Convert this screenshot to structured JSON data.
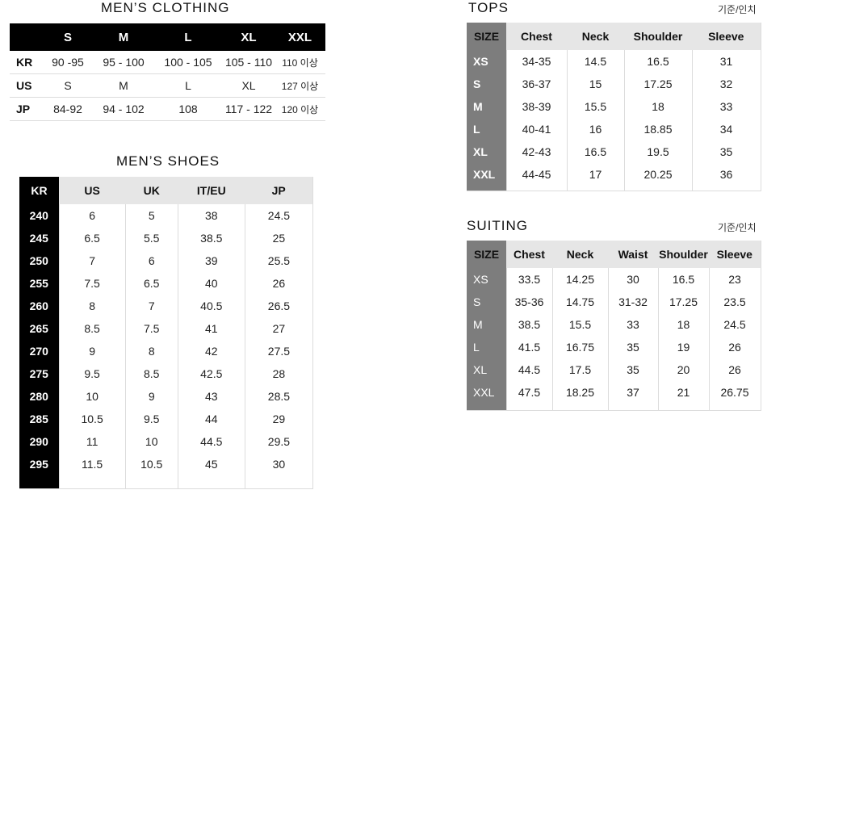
{
  "mens_clothing": {
    "title": "MEN’S CLOTHING",
    "headers": [
      "",
      "S",
      "M",
      "L",
      "XL",
      "XXL"
    ],
    "rows": [
      {
        "label": "KR",
        "cells": [
          "90 -95",
          "95 - 100",
          "100 - 105",
          "105 - 110",
          "110 이상"
        ]
      },
      {
        "label": "US",
        "cells": [
          "S",
          "M",
          "L",
          "XL",
          "127 이상"
        ]
      },
      {
        "label": "JP",
        "cells": [
          "84-92",
          "94 - 102",
          "108",
          "117 - 122",
          "120 이상"
        ]
      }
    ]
  },
  "mens_shoes": {
    "title": "MEN’S SHOES",
    "headers": [
      "KR",
      "US",
      "UK",
      "IT/EU",
      "JP"
    ],
    "rows": [
      [
        "240",
        "6",
        "5",
        "38",
        "24.5"
      ],
      [
        "245",
        "6.5",
        "5.5",
        "38.5",
        "25"
      ],
      [
        "250",
        "7",
        "6",
        "39",
        "25.5"
      ],
      [
        "255",
        "7.5",
        "6.5",
        "40",
        "26"
      ],
      [
        "260",
        "8",
        "7",
        "40.5",
        "26.5"
      ],
      [
        "265",
        "8.5",
        "7.5",
        "41",
        "27"
      ],
      [
        "270",
        "9",
        "8",
        "42",
        "27.5"
      ],
      [
        "275",
        "9.5",
        "8.5",
        "42.5",
        "28"
      ],
      [
        "280",
        "10",
        "9",
        "43",
        "28.5"
      ],
      [
        "285",
        "10.5",
        "9.5",
        "44",
        "29"
      ],
      [
        "290",
        "11",
        "10",
        "44.5",
        "29.5"
      ],
      [
        "295",
        "11.5",
        "10.5",
        "45",
        "30"
      ]
    ]
  },
  "tops": {
    "title": "TOPS",
    "unit": "기준/인치",
    "headers": [
      "SIZE",
      "Chest",
      "Neck",
      "Shoulder",
      "Sleeve"
    ],
    "rows": [
      [
        "XS",
        "34-35",
        "14.5",
        "16.5",
        "31"
      ],
      [
        "S",
        "36-37",
        "15",
        "17.25",
        "32"
      ],
      [
        "M",
        "38-39",
        "15.5",
        "18",
        "33"
      ],
      [
        "L",
        "40-41",
        "16",
        "18.85",
        "34"
      ],
      [
        "XL",
        "42-43",
        "16.5",
        "19.5",
        "35"
      ],
      [
        "XXL",
        "44-45",
        "17",
        "20.25",
        "36"
      ]
    ]
  },
  "suiting": {
    "title": "SUITING",
    "unit": "기준/인치",
    "headers": [
      "SIZE",
      "Chest",
      "Neck",
      "Waist",
      "Shoulder",
      "Sleeve"
    ],
    "rows": [
      [
        "XS",
        "33.5",
        "14.25",
        "30",
        "16.5",
        "23"
      ],
      [
        "S",
        "35-36",
        "14.75",
        "31-32",
        "17.25",
        "23.5"
      ],
      [
        "M",
        "38.5",
        "15.5",
        "33",
        "18",
        "24.5"
      ],
      [
        "L",
        "41.5",
        "16.75",
        "35",
        "19",
        "26"
      ],
      [
        "XL",
        "44.5",
        "17.5",
        "35",
        "20",
        "26"
      ],
      [
        "XXL",
        "47.5",
        "18.25",
        "37",
        "21",
        "26.75"
      ]
    ]
  }
}
